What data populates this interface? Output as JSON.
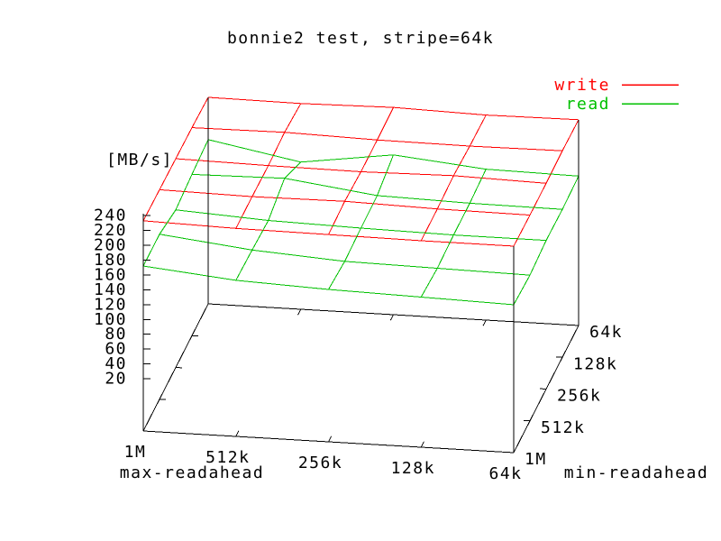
{
  "title": "bonnie2 test, stripe=64k",
  "z_axis": {
    "label": "[MB/s]",
    "ticks": [
      20,
      40,
      60,
      80,
      100,
      120,
      140,
      160,
      180,
      200,
      220,
      240
    ]
  },
  "x_axis": {
    "label": "max-readahead",
    "ticks": [
      "1M",
      "512k",
      "256k",
      "128k",
      "64k"
    ]
  },
  "y_axis": {
    "label": "min-readahead",
    "ticks": [
      "1M",
      "512k",
      "256k",
      "128k",
      "64k"
    ]
  },
  "legend": {
    "items": [
      {
        "label": "write",
        "color": "#ff0000"
      },
      {
        "label": "read",
        "color": "#00c000"
      }
    ]
  },
  "chart_data": {
    "type": "surface3d-wireframe",
    "title": "bonnie2 test, stripe=64k",
    "x": {
      "label": "max-readahead",
      "categories": [
        "1M",
        "512k",
        "256k",
        "128k",
        "64k"
      ]
    },
    "y": {
      "label": "min-readahead",
      "categories": [
        "1M",
        "512k",
        "256k",
        "128k",
        "64k"
      ]
    },
    "z": {
      "label": "[MB/s]",
      "ticks": [
        20,
        40,
        60,
        80,
        100,
        120,
        140,
        160,
        180,
        200,
        220,
        240
      ],
      "range": [
        0,
        250
      ]
    },
    "grid": "5x5 mesh, rows indexed by min-readahead (1M front to 64k right), cols by max-readahead (1M left to 64k front)",
    "series": [
      {
        "name": "write",
        "color": "#ff0000",
        "values": [
          [
            233,
            230,
            229,
            228,
            228
          ],
          [
            232,
            230,
            231,
            228,
            227
          ],
          [
            231,
            229,
            228,
            230,
            227
          ],
          [
            230,
            231,
            228,
            227,
            228
          ],
          [
            228,
            227,
            229,
            226,
            227
          ]
        ]
      },
      {
        "name": "read",
        "color": "#00c000",
        "values": [
          [
            172,
            160,
            155,
            152,
            149
          ],
          [
            172,
            158,
            150,
            148,
            146
          ],
          [
            162,
            155,
            152,
            150,
            150
          ],
          [
            167,
            169,
            153,
            150,
            149
          ],
          [
            171,
            148,
            165,
            153,
            151
          ]
        ]
      }
    ]
  }
}
